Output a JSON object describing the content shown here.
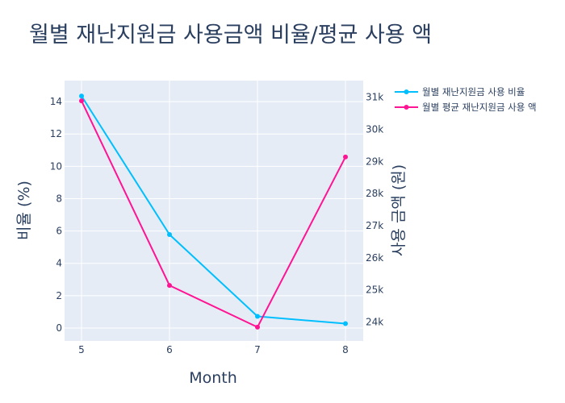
{
  "chart_data": {
    "type": "line",
    "title": "월별 재난지원금 사용금액 비율/평균 사용 액",
    "xlabel": "Month",
    "ylabel": "비율 (%)",
    "y2label": "사용 금액 (원)",
    "x": [
      5,
      6,
      7,
      8
    ],
    "xticks": [
      "5",
      "6",
      "7",
      "8"
    ],
    "ylim": [
      -0.8,
      15.3
    ],
    "yticks": [
      0,
      2,
      4,
      6,
      8,
      10,
      12,
      14
    ],
    "y2lim": [
      23410,
      31520
    ],
    "y2ticks": [
      24000,
      25000,
      26000,
      27000,
      28000,
      29000,
      30000,
      31000
    ],
    "y2ticklabels": [
      "24k",
      "25k",
      "26k",
      "27k",
      "28k",
      "29k",
      "30k",
      "31k"
    ],
    "legend_position": "top-right",
    "grid": true,
    "plot_background": "#e5ecf6",
    "series": [
      {
        "name": "월별 재난지원금 사용 비율",
        "axis": "y",
        "color": "#00bfff",
        "values": [
          14.35,
          5.78,
          0.72,
          0.27
        ]
      },
      {
        "name": "월별 평균 재난지원금 사용 액",
        "axis": "y2",
        "color": "#ff1493",
        "values": [
          30890,
          25140,
          23840,
          29140
        ]
      }
    ]
  }
}
